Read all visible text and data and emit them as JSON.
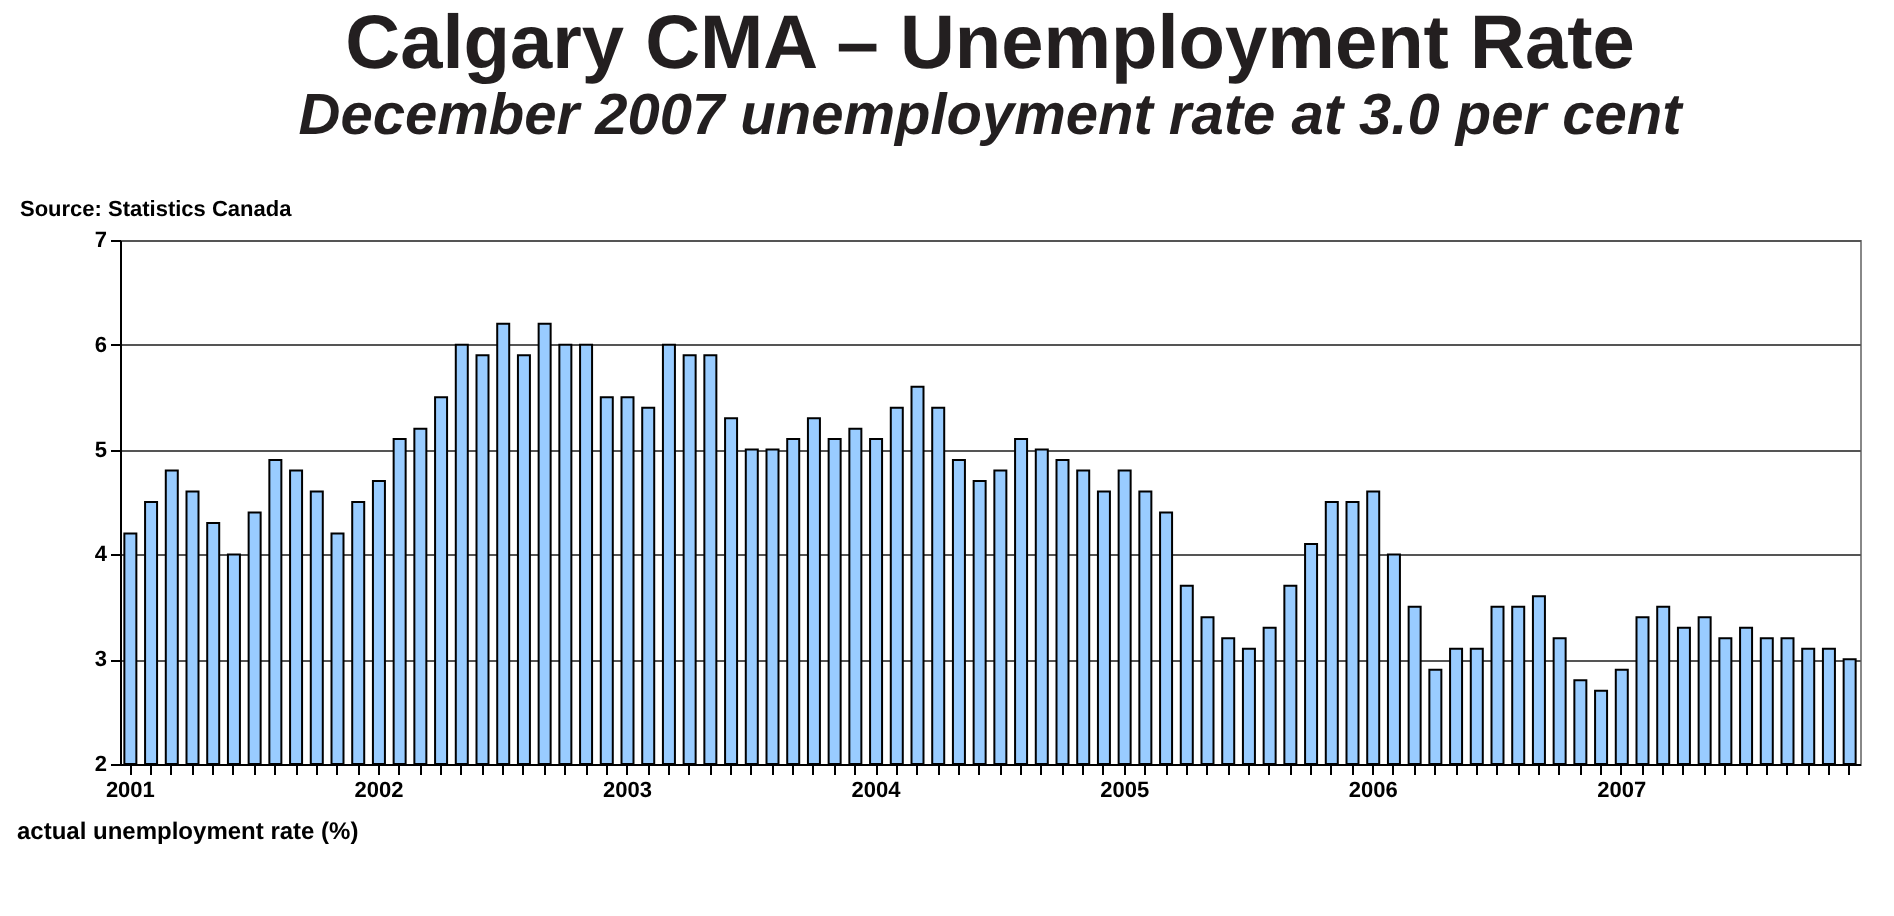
{
  "chart_data": {
    "type": "bar",
    "title": "Calgary CMA – Unemployment Rate",
    "subtitle": "December 2007 unemployment rate at 3.0 per cent",
    "xlabel": "actual unemployment rate (%)",
    "annotations": [
      "Source:  Statistics Canada"
    ],
    "categories": [
      "2001",
      null,
      null,
      null,
      null,
      null,
      null,
      null,
      null,
      null,
      null,
      null,
      "2002",
      null,
      null,
      null,
      null,
      null,
      null,
      null,
      null,
      null,
      null,
      null,
      "2003",
      null,
      null,
      null,
      null,
      null,
      null,
      null,
      null,
      null,
      null,
      null,
      "2004",
      null,
      null,
      null,
      null,
      null,
      null,
      null,
      null,
      null,
      null,
      null,
      "2005",
      null,
      null,
      null,
      null,
      null,
      null,
      null,
      null,
      null,
      null,
      null,
      "2006",
      null,
      null,
      null,
      null,
      null,
      null,
      null,
      null,
      null,
      null,
      null,
      "2007",
      null,
      null,
      null,
      null,
      null,
      null,
      null,
      null,
      null,
      null,
      null
    ],
    "values": [
      4.2,
      4.5,
      4.8,
      4.6,
      4.3,
      4.0,
      4.4,
      4.9,
      4.8,
      4.6,
      4.2,
      4.5,
      4.7,
      5.1,
      5.2,
      5.5,
      6.0,
      5.9,
      6.2,
      5.9,
      6.2,
      6.0,
      6.0,
      5.5,
      5.5,
      5.4,
      6.0,
      5.9,
      5.9,
      5.3,
      5.0,
      5.0,
      5.1,
      5.3,
      5.1,
      5.2,
      5.1,
      5.4,
      5.6,
      5.4,
      4.9,
      4.7,
      4.8,
      5.1,
      5.0,
      4.9,
      4.8,
      4.6,
      4.8,
      4.6,
      4.4,
      3.7,
      3.4,
      3.2,
      3.1,
      3.3,
      3.7,
      4.1,
      4.5,
      4.5,
      4.6,
      4.0,
      3.5,
      2.9,
      3.1,
      3.1,
      3.5,
      3.5,
      3.6,
      3.2,
      2.8,
      2.7,
      2.9,
      3.4,
      3.5,
      3.3,
      3.4,
      3.2,
      3.3,
      3.2,
      3.2,
      3.1,
      3.1,
      3.0
    ],
    "color": "#99ccff",
    "ylim": [
      2,
      7
    ],
    "yticks": [
      2,
      3,
      4,
      5,
      6,
      7
    ],
    "grid": "y"
  }
}
